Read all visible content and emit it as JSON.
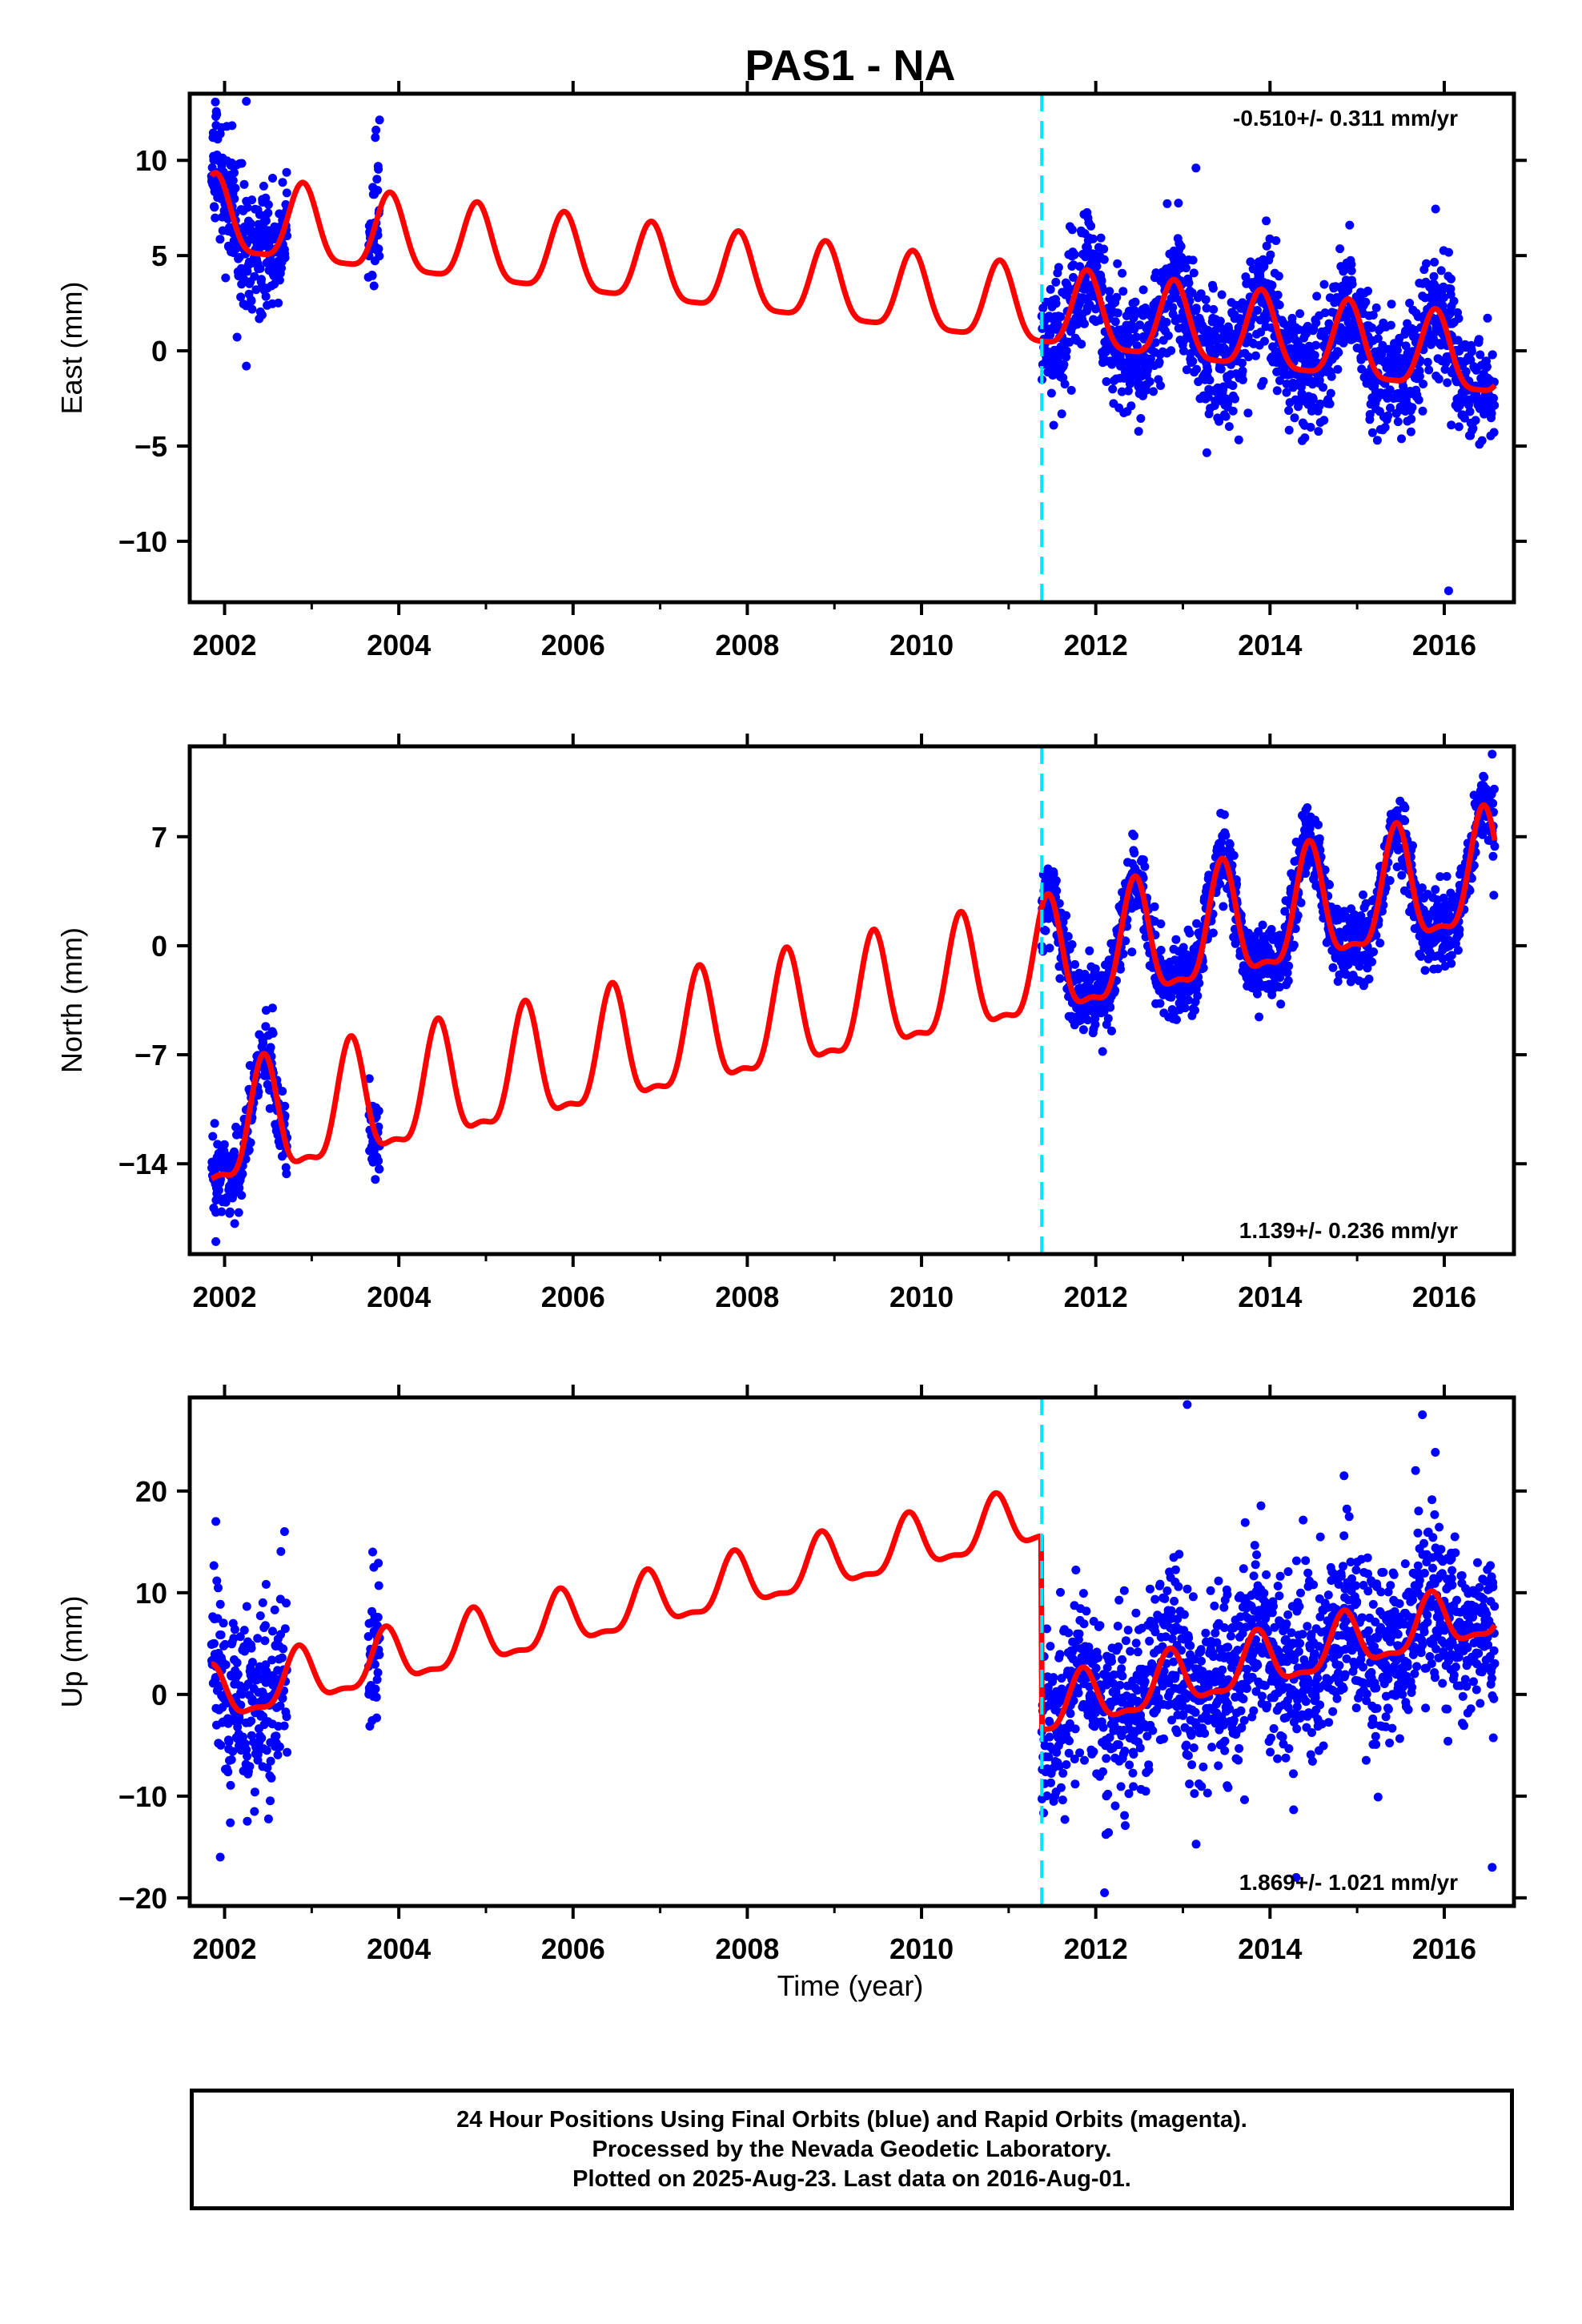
{
  "figure": {
    "title": "PAS1 - NA",
    "xlabel": "Time (year)",
    "colors": {
      "data": "#0000ff",
      "model": "#ff0000",
      "event": "#00e5ff",
      "frame": "#000000"
    }
  },
  "footer": {
    "line1": "24 Hour Positions Using Final Orbits (blue) and Rapid Orbits (magenta).",
    "line2": "Processed by the Nevada Geodetic Laboratory.",
    "line3": "Plotted on 2025-Aug-23. Last data on 2016-Aug-01."
  },
  "chart_data": [
    {
      "type": "scatter",
      "ylabel": "East (mm)",
      "rate_label": "-0.510+/- 0.311 mm/yr",
      "rate_position": "top-right",
      "xlim": [
        2001.6,
        2016.8
      ],
      "ylim": [
        -13.2,
        13.5
      ],
      "x_ticks": [
        2002,
        2004,
        2006,
        2008,
        2010,
        2012,
        2014,
        2016
      ],
      "y_ticks": [
        -10,
        -5,
        0,
        5,
        10
      ],
      "event_line_x": 2011.38,
      "data_segments": [
        [
          2001.85,
          2002.72
        ],
        [
          2003.65,
          2003.78
        ],
        [
          2011.38,
          2016.58
        ]
      ],
      "model": {
        "start_value": 7.0,
        "rate": -0.51,
        "annual_amplitude": 2.0,
        "semiannual_amplitude": 0.5,
        "annual_phase_peak": 2001.9,
        "offset_at_event": 0.0
      },
      "scatter_sigma": 1.6,
      "outliers": [
        [
          2002.25,
          13.1
        ],
        [
          2001.9,
          12.3
        ],
        [
          2003.73,
          11.2
        ],
        [
          2013.15,
          9.6
        ],
        [
          2016.05,
          -12.6
        ],
        [
          2002.25,
          -0.8
        ]
      ]
    },
    {
      "type": "scatter",
      "ylabel": "North (mm)",
      "rate_label": "1.139+/- 0.236 mm/yr",
      "rate_position": "bottom-right",
      "xlim": [
        2001.6,
        2016.8
      ],
      "ylim": [
        -19.8,
        12.8
      ],
      "x_ticks": [
        2002,
        2004,
        2006,
        2008,
        2010,
        2012,
        2014,
        2016
      ],
      "y_ticks": [
        -14,
        -7,
        0,
        7
      ],
      "event_line_x": 2011.38,
      "data_segments": [
        [
          2001.85,
          2002.72
        ],
        [
          2003.65,
          2003.78
        ],
        [
          2011.38,
          2016.58
        ]
      ],
      "model": {
        "start_value": -12.7,
        "rate": 1.14,
        "annual_amplitude": 3.6,
        "semiannual_amplitude": 1.2,
        "annual_phase_peak": 2002.45,
        "offset_at_event": 0.0
      },
      "scatter_sigma": 1.2,
      "outliers": [
        [
          2001.9,
          -19.0
        ],
        [
          2003.73,
          -15.0
        ],
        [
          2016.55,
          12.3
        ],
        [
          2002.55,
          -4.0
        ]
      ]
    },
    {
      "type": "scatter",
      "ylabel": "Up (mm)",
      "rate_label": "1.869+/- 1.021 mm/yr",
      "rate_position": "bottom-right",
      "xlim": [
        2001.6,
        2016.8
      ],
      "ylim": [
        -20.8,
        29.2
      ],
      "x_ticks": [
        2002,
        2004,
        2006,
        2008,
        2010,
        2012,
        2014,
        2016
      ],
      "y_ticks": [
        -20,
        -10,
        0,
        10,
        20
      ],
      "event_line_x": 2011.38,
      "data_segments": [
        [
          2001.85,
          2002.72
        ],
        [
          2003.65,
          2003.78
        ],
        [
          2011.38,
          2016.58
        ]
      ],
      "model": {
        "start_value": -1.0,
        "rate": 1.87,
        "annual_amplitude": 2.6,
        "semiannual_amplitude": 0.9,
        "annual_phase_peak": 2001.85,
        "offset_at_event": -19.0
      },
      "scatter_sigma": 4.5,
      "outliers": [
        [
          2013.05,
          28.5
        ],
        [
          2015.75,
          27.5
        ],
        [
          2014.85,
          21.5
        ],
        [
          2001.9,
          17.0
        ],
        [
          2003.7,
          14.0
        ],
        [
          2012.1,
          -19.5
        ],
        [
          2014.3,
          -18.0
        ],
        [
          2001.95,
          -16.0
        ],
        [
          2016.55,
          -17.0
        ]
      ]
    }
  ]
}
